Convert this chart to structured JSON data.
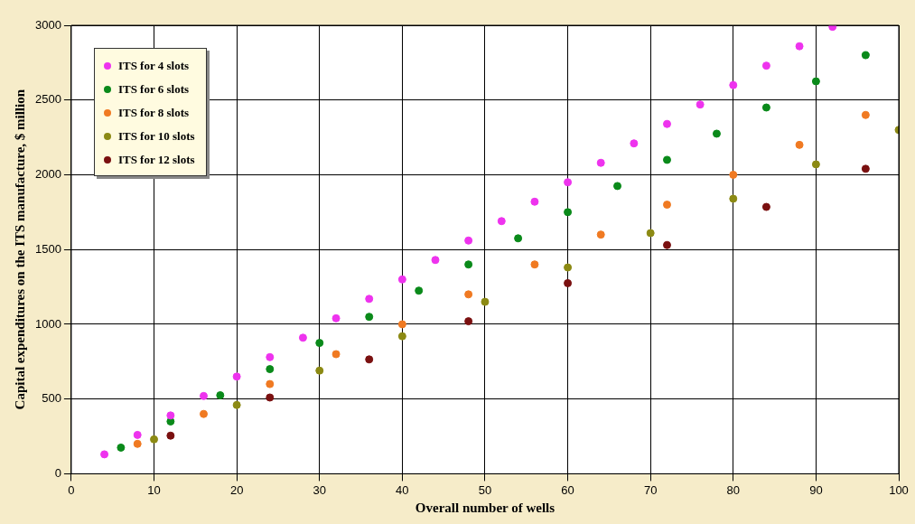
{
  "chart_data": {
    "type": "scatter",
    "xlabel": "Overall number of wells",
    "ylabel": "Capital expenditures on the ITS manufacture, $ million",
    "xlim": [
      0,
      100
    ],
    "xticks": [
      0,
      10,
      20,
      30,
      40,
      50,
      60,
      70,
      80,
      90,
      100
    ],
    "ylim": [
      0,
      3000
    ],
    "yticks": [
      0,
      500,
      1000,
      1500,
      2000,
      2500,
      3000
    ],
    "grid": true,
    "legend": "top left",
    "marker": "circle",
    "series": [
      {
        "name": "ITS for 4 slots",
        "color": "#ee33ee",
        "x": [
          4,
          8,
          12,
          16,
          20,
          24,
          28,
          32,
          36,
          40,
          44,
          48,
          52,
          56,
          60,
          64,
          68,
          72,
          76,
          80,
          84,
          88,
          92
        ],
        "values": [
          130,
          260,
          390,
          520,
          650,
          780,
          910,
          1040,
          1170,
          1300,
          1430,
          1560,
          1690,
          1820,
          1950,
          2080,
          2210,
          2340,
          2470,
          2600,
          2730,
          2860,
          2990
        ]
      },
      {
        "name": "ITS for 6 slots",
        "color": "#0a8a1a",
        "x": [
          6,
          12,
          18,
          24,
          30,
          36,
          42,
          48,
          54,
          60,
          66,
          72,
          78,
          84,
          90,
          96
        ],
        "values": [
          175,
          350,
          525,
          700,
          875,
          1050,
          1225,
          1400,
          1575,
          1750,
          1925,
          2100,
          2275,
          2450,
          2625,
          2800
        ]
      },
      {
        "name": "ITS for 8 slots",
        "color": "#f07a22",
        "x": [
          8,
          16,
          24,
          32,
          40,
          48,
          56,
          64,
          72,
          80,
          88,
          96
        ],
        "values": [
          200,
          400,
          600,
          800,
          1000,
          1200,
          1400,
          1600,
          1800,
          2000,
          2200,
          2400
        ]
      },
      {
        "name": "ITS for 10 slots",
        "color": "#8c8a14",
        "x": [
          10,
          20,
          30,
          40,
          50,
          60,
          70,
          80,
          90,
          100
        ],
        "values": [
          230,
          460,
          690,
          920,
          1150,
          1380,
          1610,
          1840,
          2070,
          2300
        ]
      },
      {
        "name": "ITS for 12 slots",
        "color": "#7a1010",
        "x": [
          12,
          24,
          36,
          48,
          60,
          72,
          84,
          96
        ],
        "values": [
          255,
          510,
          765,
          1020,
          1275,
          1530,
          1785,
          2040
        ]
      }
    ]
  }
}
